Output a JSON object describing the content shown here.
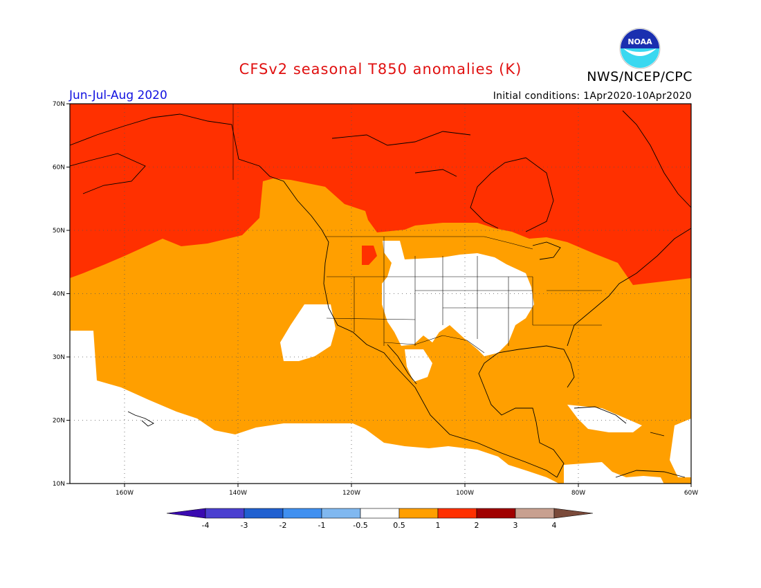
{
  "header": {
    "title": "CFSv2 seasonal T850 anomalies (K)",
    "credit": "NWS/NCEP/CPC",
    "season": "Jun-Jul-Aug 2020",
    "initial_conditions": "Initial conditions: 1Apr2020-10Apr2020",
    "logo_text": "NOAA"
  },
  "axes": {
    "lat_labels": [
      "70N",
      "60N",
      "50N",
      "40N",
      "30N",
      "20N",
      "10N"
    ],
    "lon_labels": [
      "160W",
      "140W",
      "120W",
      "100W",
      "80W",
      "60W"
    ]
  },
  "colorbar": {
    "labels": [
      "-4",
      "-3",
      "-2",
      "-1",
      "-0.5",
      "0.5",
      "1",
      "2",
      "3",
      "4"
    ],
    "colors": [
      "#3a0ab0",
      "#4b3fd0",
      "#2060d0",
      "#4090f0",
      "#80b8f0",
      "#ffffff",
      "#ff9f00",
      "#ff3000",
      "#a00000",
      "#c8a090",
      "#7a4a3a"
    ]
  },
  "colors": {
    "title": "#e01010",
    "season": "#1010e0",
    "weak_warm": "#ff9f00",
    "strong_warm": "#ff3000",
    "neutral": "#ffffff"
  }
}
